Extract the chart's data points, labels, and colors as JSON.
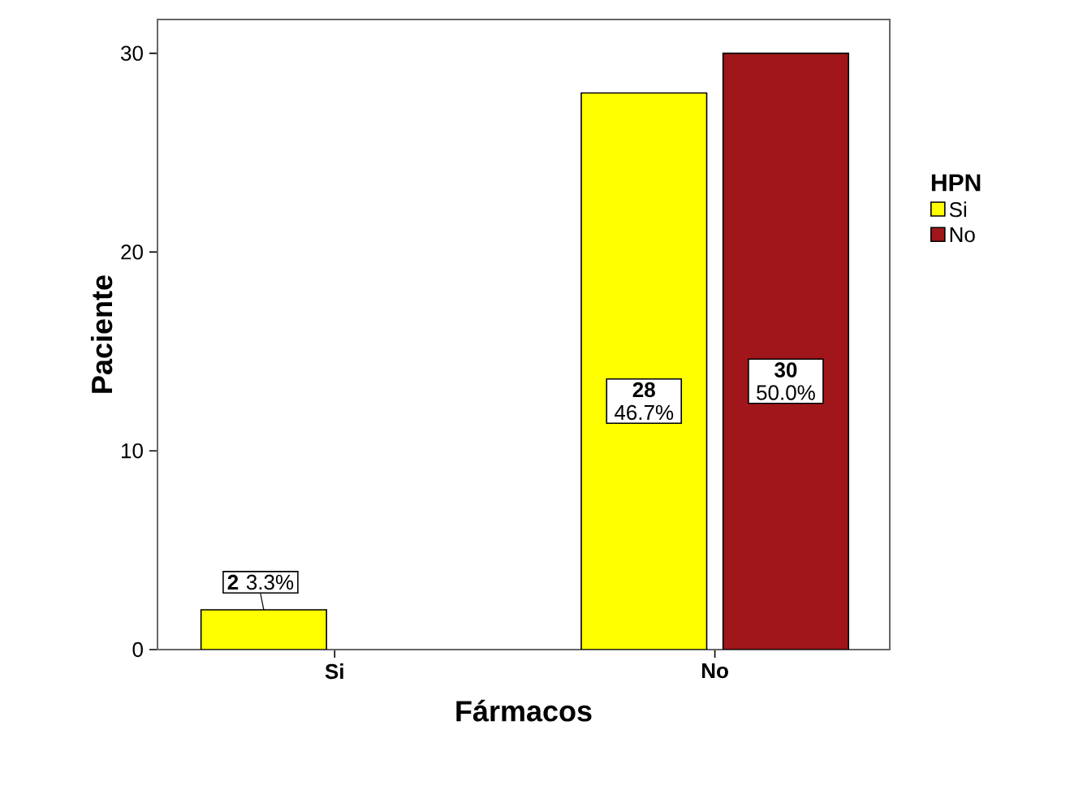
{
  "chart_data": {
    "type": "bar",
    "xlabel": "Fármacos",
    "ylabel": "Paciente",
    "legend_title": "HPN",
    "categories": [
      "Si",
      "No"
    ],
    "series": [
      {
        "name": "Si",
        "color": "#ffff00",
        "values": [
          2,
          28
        ],
        "value_labels": [
          "**2** 3.3%",
          "**28** 46.7%"
        ]
      },
      {
        "name": "No",
        "color": "#a0161a",
        "values": [
          null,
          30
        ],
        "value_labels": [
          null,
          "**30** 50.0%"
        ]
      }
    ],
    "ylim": [
      0,
      31.7
    ],
    "yticks": [
      0,
      10,
      20,
      30
    ],
    "grid": false,
    "legend": "right"
  }
}
